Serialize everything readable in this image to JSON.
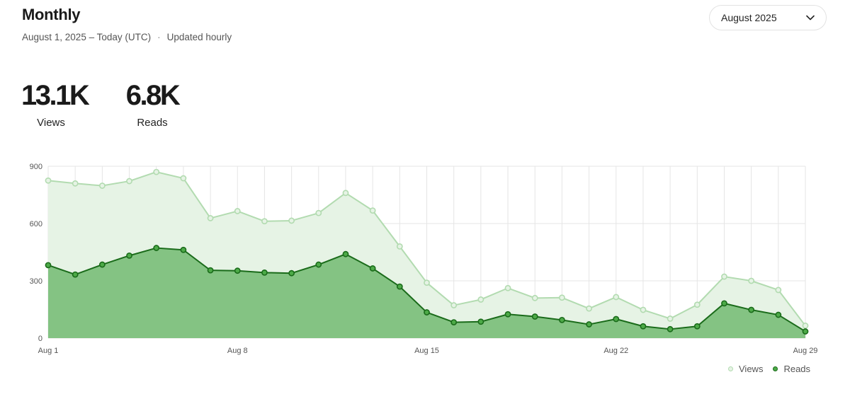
{
  "header": {
    "title": "Monthly",
    "range": "August 1, 2025 – Today (UTC)",
    "separator": "·",
    "update_note": "Updated hourly"
  },
  "month_select": {
    "value": "August 2025",
    "icon": "chevron-down-icon"
  },
  "stats": {
    "views": {
      "value": "13.1K",
      "label": "Views"
    },
    "reads": {
      "value": "6.8K",
      "label": "Reads"
    }
  },
  "colors": {
    "views_line": "#b2dbb0",
    "views_fill": "#e6f3e5",
    "reads_line": "#1a6b1a",
    "reads_fill": "#84c383",
    "reads_point": "#4daa48",
    "grid": "#e5e5e5"
  },
  "chart_data": {
    "type": "area",
    "x": [
      "Aug 1",
      "Aug 2",
      "Aug 3",
      "Aug 4",
      "Aug 5",
      "Aug 6",
      "Aug 7",
      "Aug 8",
      "Aug 9",
      "Aug 10",
      "Aug 11",
      "Aug 12",
      "Aug 13",
      "Aug 14",
      "Aug 15",
      "Aug 16",
      "Aug 17",
      "Aug 18",
      "Aug 19",
      "Aug 20",
      "Aug 21",
      "Aug 22",
      "Aug 23",
      "Aug 24",
      "Aug 25",
      "Aug 26",
      "Aug 27",
      "Aug 28",
      "Aug 29"
    ],
    "x_tick_labels": [
      "Aug 1",
      "Aug 8",
      "Aug 15",
      "Aug 22",
      "Aug 29"
    ],
    "x_tick_index": [
      0,
      7,
      14,
      21,
      28
    ],
    "y_ticks": [
      0,
      300,
      600,
      900
    ],
    "ylim": [
      0,
      900
    ],
    "grid": true,
    "legend_position": "bottom-right",
    "series": [
      {
        "name": "Views",
        "values": [
          825,
          810,
          798,
          822,
          870,
          837,
          628,
          665,
          612,
          615,
          655,
          760,
          668,
          480,
          290,
          172,
          202,
          262,
          210,
          212,
          155,
          215,
          148,
          102,
          175,
          322,
          300,
          252,
          65
        ]
      },
      {
        "name": "Reads",
        "values": [
          382,
          333,
          385,
          432,
          472,
          462,
          355,
          353,
          343,
          340,
          385,
          440,
          365,
          270,
          135,
          83,
          86,
          125,
          113,
          95,
          72,
          100,
          62,
          47,
          62,
          182,
          148,
          122,
          35
        ]
      }
    ]
  }
}
